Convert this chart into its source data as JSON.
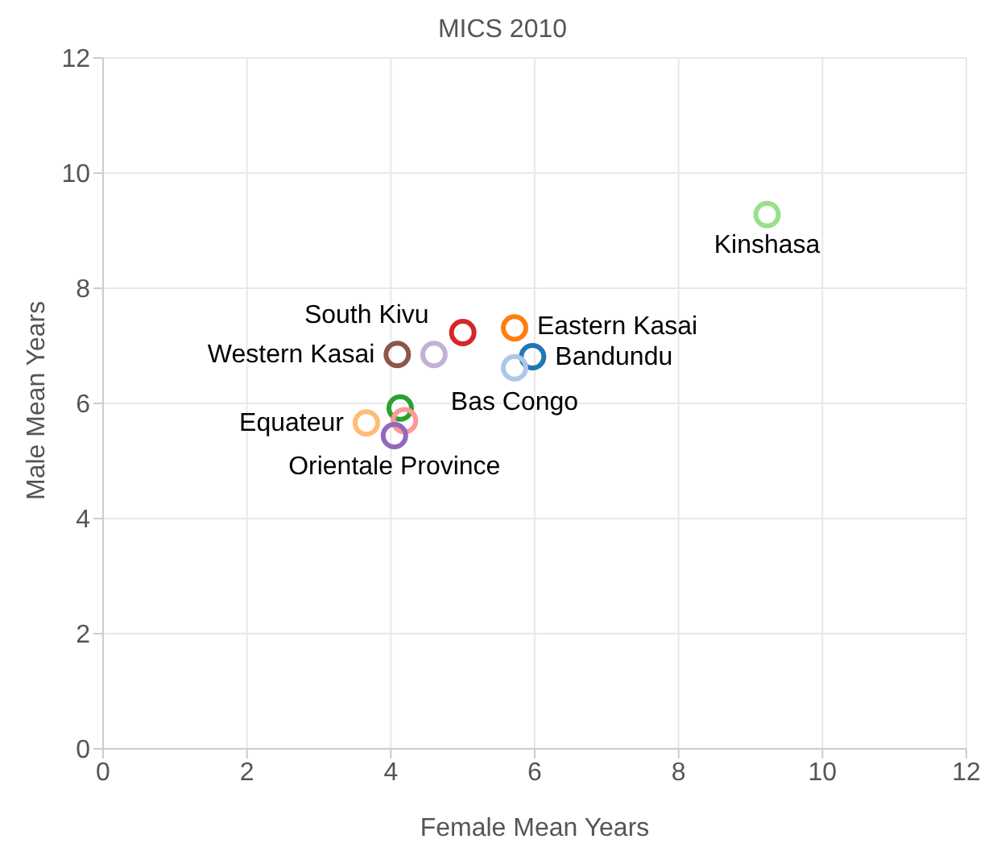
{
  "chart_data": {
    "type": "scatter",
    "title": "MICS 2010",
    "xlabel": "Female Mean Years",
    "ylabel": "Male Mean Years",
    "xlim": [
      0,
      12
    ],
    "ylim": [
      0,
      12
    ],
    "xticks": [
      0,
      2,
      4,
      6,
      8,
      10,
      12
    ],
    "yticks": [
      0,
      2,
      4,
      6,
      8,
      10,
      12
    ],
    "grid": true,
    "legend": false,
    "marker": "circle",
    "series": [
      {
        "name": "Kinshasa",
        "color": "#98df8a",
        "x": [
          9.23
        ],
        "values": [
          9.28
        ]
      },
      {
        "name": "South Kivu",
        "color": "#d62728",
        "x": [
          5.0
        ],
        "values": [
          7.23
        ]
      },
      {
        "name": "Eastern Kasai",
        "color": "#ff7f0e",
        "x": [
          5.72
        ],
        "values": [
          7.31
        ]
      },
      {
        "name": "Western Kasai",
        "color": "#8c564b",
        "x": [
          4.09
        ],
        "values": [
          6.85
        ]
      },
      {
        "color": "#c5b0d5",
        "x": [
          4.6
        ],
        "values": [
          6.85
        ]
      },
      {
        "name": "Bandundu",
        "color": "#1f77b4",
        "x": [
          5.97
        ],
        "values": [
          6.81
        ]
      },
      {
        "name": "Bas Congo",
        "color": "#aec7e8",
        "x": [
          5.72
        ],
        "values": [
          6.62
        ]
      },
      {
        "color": "#2ca02c",
        "x": [
          4.13
        ],
        "values": [
          5.92
        ]
      },
      {
        "color": "#ff9896",
        "x": [
          4.19
        ],
        "values": [
          5.7
        ]
      },
      {
        "name": "Equateur",
        "color": "#ffbb78",
        "x": [
          3.66
        ],
        "values": [
          5.66
        ]
      },
      {
        "name": "Orientale Province",
        "color": "#9467bd",
        "x": [
          4.05
        ],
        "values": [
          5.44
        ]
      }
    ]
  }
}
